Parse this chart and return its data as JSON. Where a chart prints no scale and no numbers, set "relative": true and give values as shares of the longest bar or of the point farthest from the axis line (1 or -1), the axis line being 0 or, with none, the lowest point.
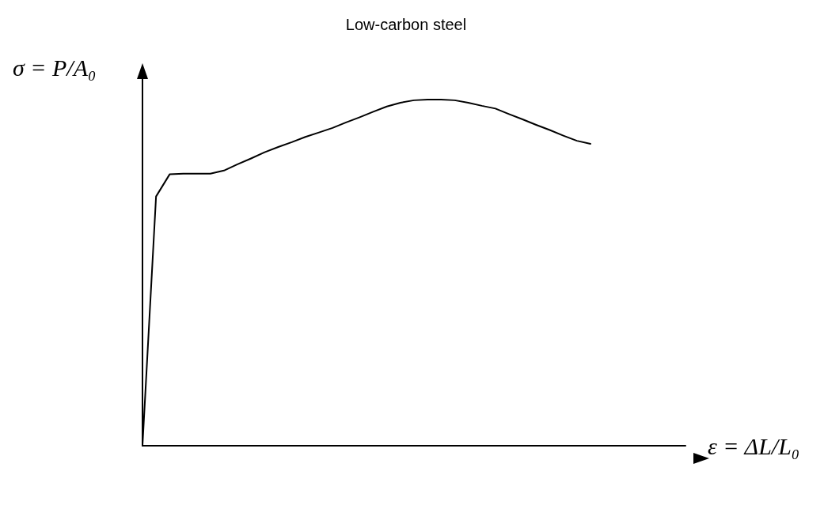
{
  "chart_data": {
    "type": "line",
    "title": "Low-carbon steel",
    "xlabel": "ε = ΔL/L₀",
    "ylabel": "σ = P/A₀",
    "relative": true,
    "grid": false,
    "marker": "none",
    "line_style": "solid",
    "categories": [
      null,
      null,
      null,
      null,
      null,
      null,
      null,
      null,
      null,
      null,
      null,
      null,
      null,
      null,
      null,
      null,
      null,
      null,
      null,
      null,
      null,
      null,
      null,
      null,
      null,
      null,
      null,
      null,
      null,
      null,
      null,
      null,
      null,
      null,
      null,
      null,
      null,
      null,
      null,
      null,
      null
    ],
    "series": [
      {
        "color": "#000000",
        "values": [
          0,
          0.72,
          0.784,
          0.786,
          0.786,
          0.786,
          0.795,
          0.813,
          0.83,
          0.848,
          0.863,
          0.877,
          0.892,
          0.905,
          0.918,
          0.934,
          0.949,
          0.965,
          0.98,
          0.991,
          0.998,
          1,
          1,
          0.998,
          0.991,
          0.982,
          0.974,
          0.958,
          0.943,
          0.927,
          0.912,
          0.896,
          0.881,
          0.872,
          null,
          null,
          null,
          null,
          null,
          null,
          null
        ]
      }
    ]
  }
}
